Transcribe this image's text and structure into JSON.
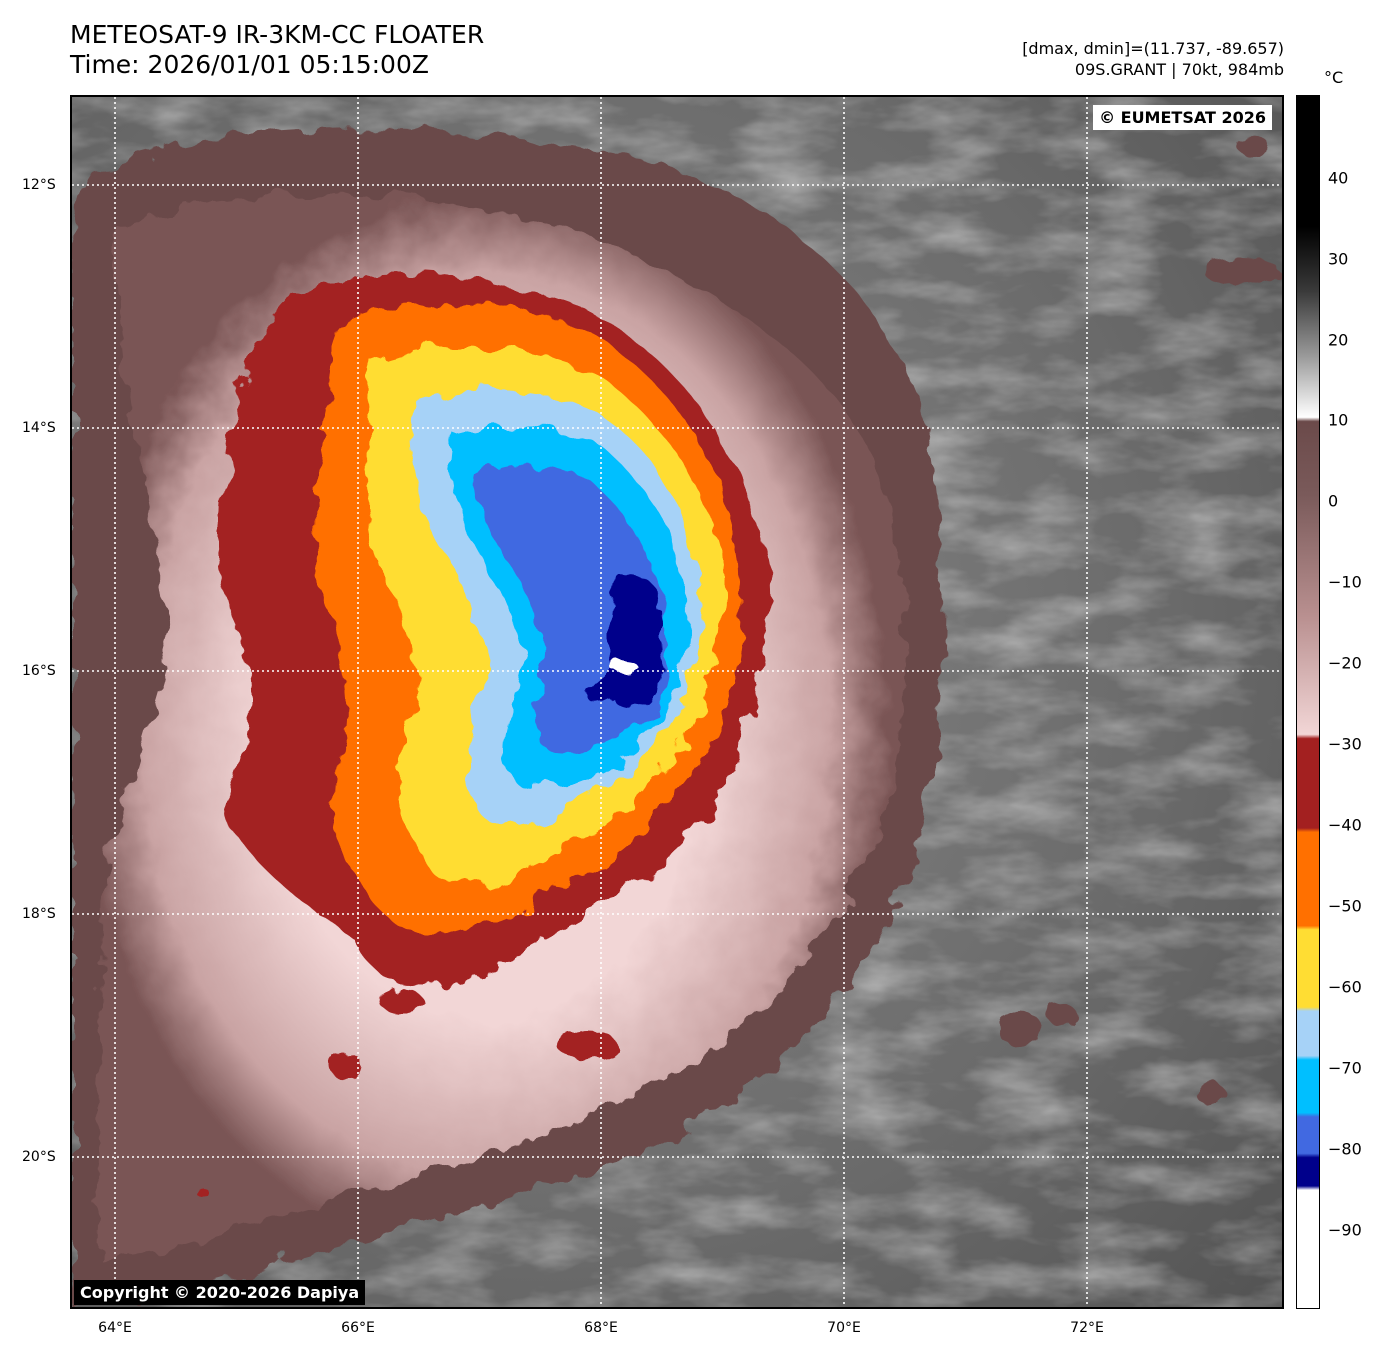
{
  "header": {
    "title_line1": "METEOSAT-9 IR-3KM-CC FLOATER",
    "title_line2": "Time: 2026/01/01 05:15:00Z",
    "range_text": "[dmax, dmin]=(11.737, -89.657)",
    "storm_text": "09S.GRANT | 70kt, 984mb"
  },
  "map": {
    "eumetsat_credit": "© EUMETSAT 2026",
    "copyright": "Copyright © 2020-2026 Dapiya",
    "lat_labels": [
      "12°S",
      "14°S",
      "16°S",
      "18°S",
      "20°S"
    ],
    "lon_labels": [
      "64°E",
      "66°E",
      "68°E",
      "70°E",
      "72°E"
    ],
    "gridline_style": "dotted-white"
  },
  "colorbar": {
    "unit": "°C",
    "ticks": [
      "40",
      "30",
      "20",
      "10",
      "0",
      "−10",
      "−20",
      "−30",
      "−40",
      "−50",
      "−60",
      "−70",
      "−80",
      "−90"
    ],
    "range_max": 49,
    "range_min": -100,
    "colors": {
      "gray_warm": "#6e6e6e",
      "pink_light": "#f2d6d6",
      "brown": "#6b4a4a",
      "dark_red": "#a32020",
      "orange": "#ff7000",
      "yellow": "#ffdd33",
      "light_blue": "#a6d2f7",
      "cyan": "#00bfff",
      "royal_blue": "#4169e1",
      "navy": "#00008b",
      "white": "#ffffff"
    }
  }
}
